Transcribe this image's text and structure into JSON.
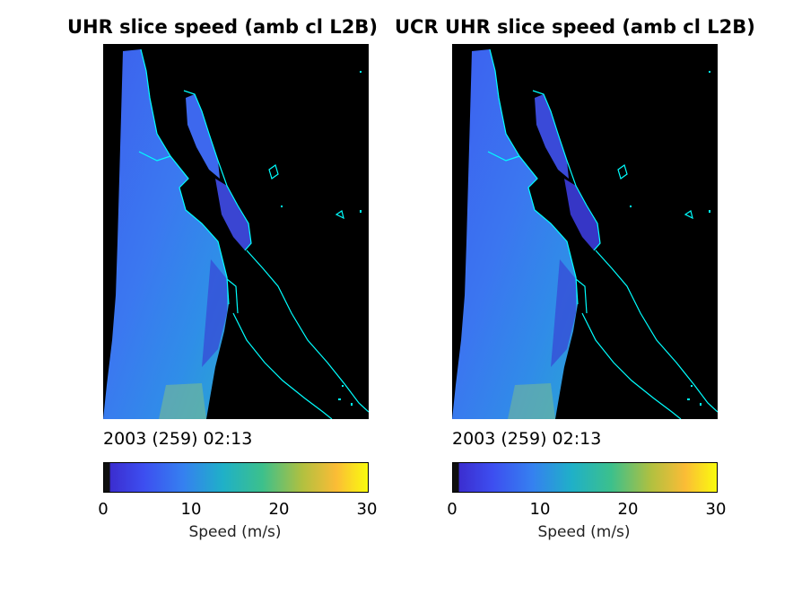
{
  "panels": [
    {
      "title": "UHR slice speed (amb cl L2B)",
      "timestamp": "2003 (259) 02:13",
      "colorbar_label": "Speed (m/s)"
    },
    {
      "title": "UCR UHR slice speed (amb cl L2B)",
      "timestamp": "2003 (259) 02:13",
      "colorbar_label": "Speed (m/s)"
    }
  ],
  "colors": {
    "coastline": "#00ffff",
    "land": "#000000",
    "colormap": [
      "#0f0f0f",
      "#3b2ed0",
      "#3d63f0",
      "#2f8ee8",
      "#1fb0c8",
      "#28c39a",
      "#86c54e",
      "#dcbc2f",
      "#fbd02c",
      "#f9fb0e"
    ]
  },
  "chart_data": [
    {
      "type": "heatmap",
      "title": "UHR slice speed (amb cl L2B)",
      "colorbar": {
        "label": "Speed (m/s)",
        "range": [
          0,
          30
        ],
        "ticks": [
          0,
          10,
          20,
          30
        ]
      },
      "timestamp": "2003 (259) 02:13"
    },
    {
      "type": "heatmap",
      "title": "UCR UHR slice speed (amb cl L2B)",
      "colorbar": {
        "label": "Speed (m/s)",
        "range": [
          0,
          30
        ],
        "ticks": [
          0,
          10,
          20,
          30
        ]
      },
      "timestamp": "2003 (259) 02:13"
    }
  ]
}
